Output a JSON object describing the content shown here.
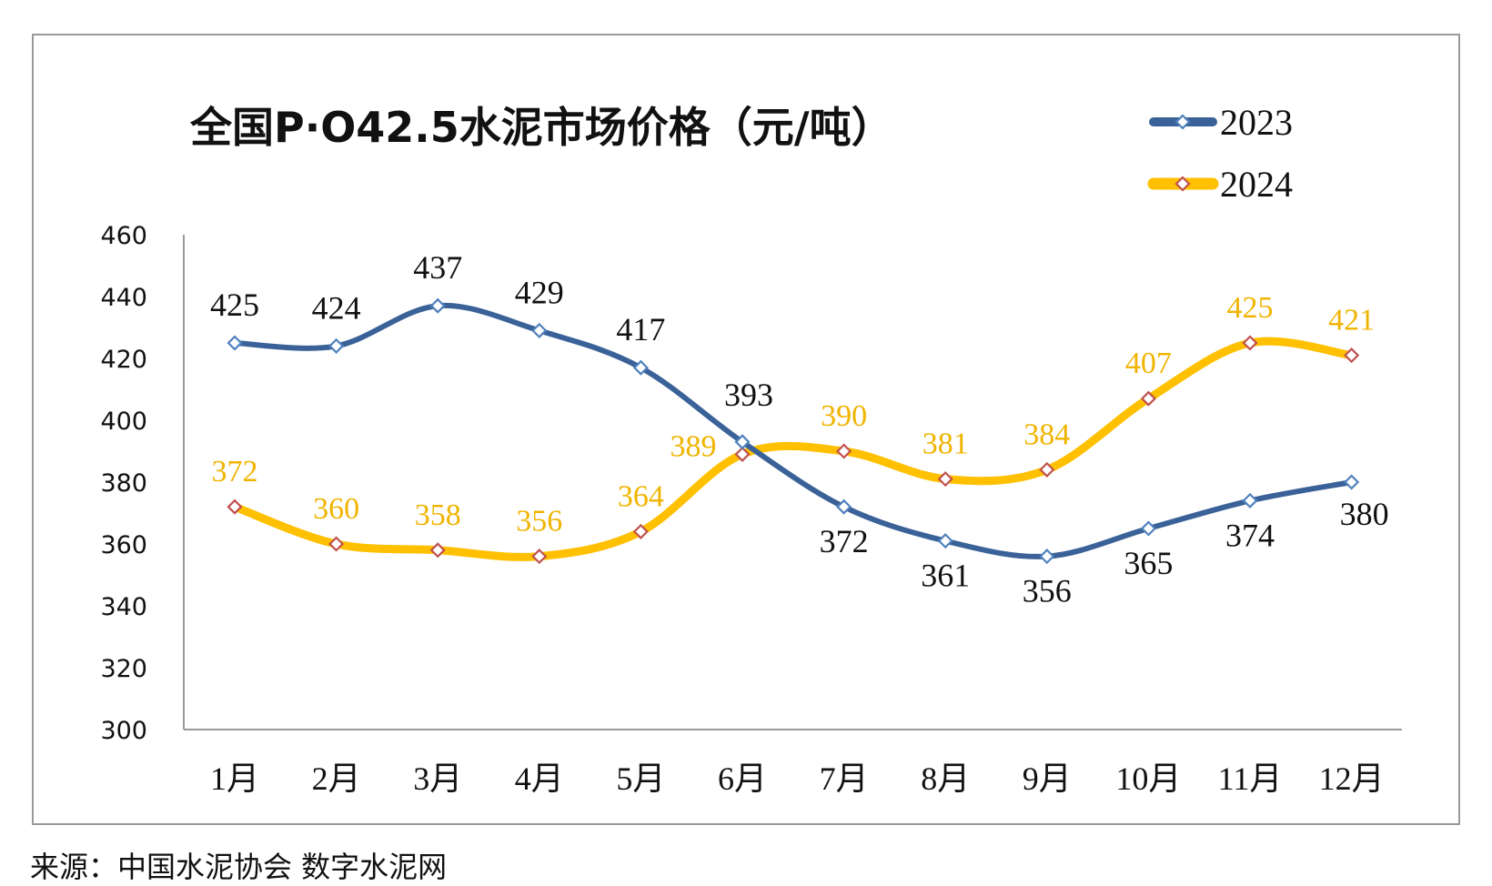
{
  "chart_data": {
    "type": "line",
    "title": "全国P·O42.5水泥市场价格（元/吨）",
    "categories": [
      "1月",
      "2月",
      "3月",
      "4月",
      "5月",
      "6月",
      "7月",
      "8月",
      "9月",
      "10月",
      "11月",
      "12月"
    ],
    "series": [
      {
        "name": "2023",
        "values": [
          425,
          424,
          437,
          429,
          417,
          393,
          372,
          361,
          356,
          365,
          374,
          380
        ],
        "color": "#3A6298",
        "marker_color": "#4F81BD"
      },
      {
        "name": "2024",
        "values": [
          372,
          360,
          358,
          356,
          364,
          389,
          390,
          381,
          384,
          407,
          425,
          421
        ],
        "color": "#FFC000",
        "marker_color": "#C0504D",
        "label_color": "#F0B400"
      }
    ],
    "yticks": [
      "300",
      "320",
      "340",
      "360",
      "380",
      "400",
      "420",
      "440",
      "460"
    ],
    "ylim": [
      300,
      460
    ],
    "grid": false,
    "legend": "top-right",
    "smooth": true
  },
  "source": "来源：中国水泥协会  数字水泥网"
}
